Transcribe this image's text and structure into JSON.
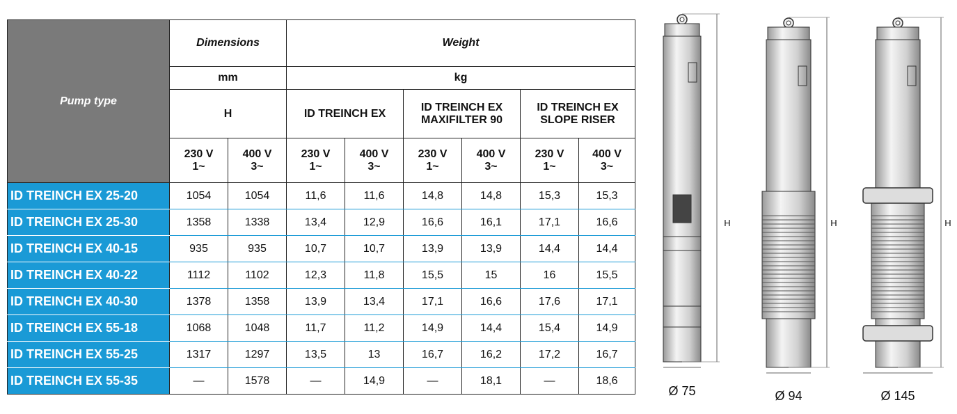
{
  "table": {
    "header": {
      "pump_type": "Pump type",
      "dimensions": "Dimensions",
      "weight": "Weight",
      "dimensions_unit": "mm",
      "weight_unit": "kg",
      "h": "H",
      "groups": [
        "ID TREINCH EX",
        "ID TREINCH EX\nMAXIFILTER 90",
        "ID TREINCH EX\nSLOPE RISER"
      ],
      "voltages": [
        "230 V\n1~",
        "400 V\n3~",
        "230 V\n1~",
        "400 V\n3~",
        "230 V\n1~",
        "400 V\n3~",
        "230 V\n1~",
        "400 V\n3~"
      ]
    },
    "rows": [
      {
        "name": "ID TREINCH EX 25-20",
        "values": [
          "1054",
          "1054",
          "11,6",
          "11,6",
          "14,8",
          "14,8",
          "15,3",
          "15,3"
        ]
      },
      {
        "name": "ID TREINCH EX 25-30",
        "values": [
          "1358",
          "1338",
          "13,4",
          "12,9",
          "16,6",
          "16,1",
          "17,1",
          "16,6"
        ]
      },
      {
        "name": "ID TREINCH EX 40-15",
        "values": [
          "935",
          "935",
          "10,7",
          "10,7",
          "13,9",
          "13,9",
          "14,4",
          "14,4"
        ]
      },
      {
        "name": "ID TREINCH EX 40-22",
        "values": [
          "1112",
          "1102",
          "12,3",
          "11,8",
          "15,5",
          "15",
          "16",
          "15,5"
        ]
      },
      {
        "name": "ID TREINCH EX 40-30",
        "values": [
          "1378",
          "1358",
          "13,9",
          "13,4",
          "17,1",
          "16,6",
          "17,6",
          "17,1"
        ]
      },
      {
        "name": "ID TREINCH EX 55-18",
        "values": [
          "1068",
          "1048",
          "11,7",
          "11,2",
          "14,9",
          "14,4",
          "15,4",
          "14,9"
        ]
      },
      {
        "name": "ID TREINCH EX 55-25",
        "values": [
          "1317",
          "1297",
          "13,5",
          "13",
          "16,7",
          "16,2",
          "17,2",
          "16,7"
        ]
      },
      {
        "name": "ID TREINCH EX 55-35",
        "values": [
          "—",
          "1578",
          "—",
          "14,9",
          "—",
          "18,1",
          "—",
          "18,6"
        ]
      }
    ]
  },
  "figures": [
    {
      "h": "H",
      "diameter": "Ø 75"
    },
    {
      "h": "H",
      "diameter": "Ø 94"
    },
    {
      "h": "H",
      "diameter": "Ø 145"
    }
  ]
}
